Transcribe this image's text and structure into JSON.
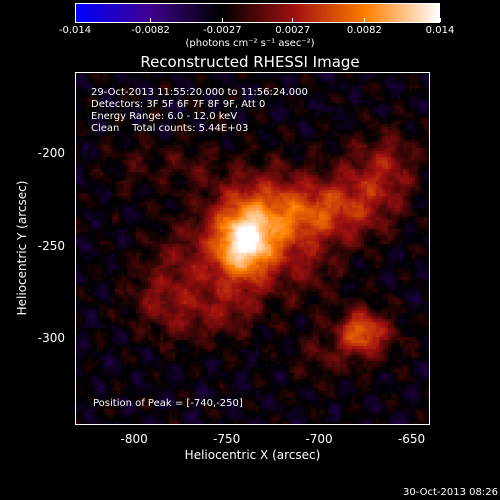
{
  "chart_data": {
    "type": "heatmap",
    "title": "Reconstructed RHESSI Image",
    "xlabel": "Heliocentric X (arcsec)",
    "ylabel": "Heliocentric Y (arcsec)",
    "xlim": [
      -832,
      -640
    ],
    "ylim": [
      -347,
      -156
    ],
    "x_ticks": [
      "-800",
      "-750",
      "-700",
      "-650"
    ],
    "x_tick_values": [
      -800,
      -750,
      -700,
      -650
    ],
    "y_ticks": [
      "-200",
      "-250",
      "-300"
    ],
    "y_tick_values": [
      -200,
      -250,
      -300
    ],
    "colorbar": {
      "range": [
        -0.014,
        0.014
      ],
      "ticks": [
        "-0.014",
        "-0.0082",
        "-0.0027",
        "0.0027",
        "0.0082",
        "0.014"
      ],
      "tick_values": [
        -0.014,
        -0.0082,
        -0.0027,
        0.0027,
        0.0082,
        0.014
      ],
      "units": "(photons cm⁻² s⁻¹ asec⁻²)",
      "colors": [
        "#0000ff",
        "#400090",
        "#000000",
        "#a01010",
        "#ff8000",
        "#ffffff"
      ]
    },
    "annotations": {
      "line1": "29-Oct-2013 11:55:20.000 to 11:56:24.000",
      "line2": "Detectors: 3F 5F 6F 7F 8F 9F, Att 0",
      "line3": "Energy Range: 6.0 - 12.0 keV",
      "line4_method": "Clean",
      "line4_counts": "Total counts: 5.44E+03",
      "peak": "Position of Peak = [-740,-250]"
    },
    "sources": [
      {
        "x": -740,
        "y": -250,
        "peak": 0.014
      },
      {
        "x": -677,
        "y": -297,
        "peak": 0.0082
      }
    ]
  },
  "footer": {
    "timestamp": "30-Oct-2013 08:26"
  }
}
